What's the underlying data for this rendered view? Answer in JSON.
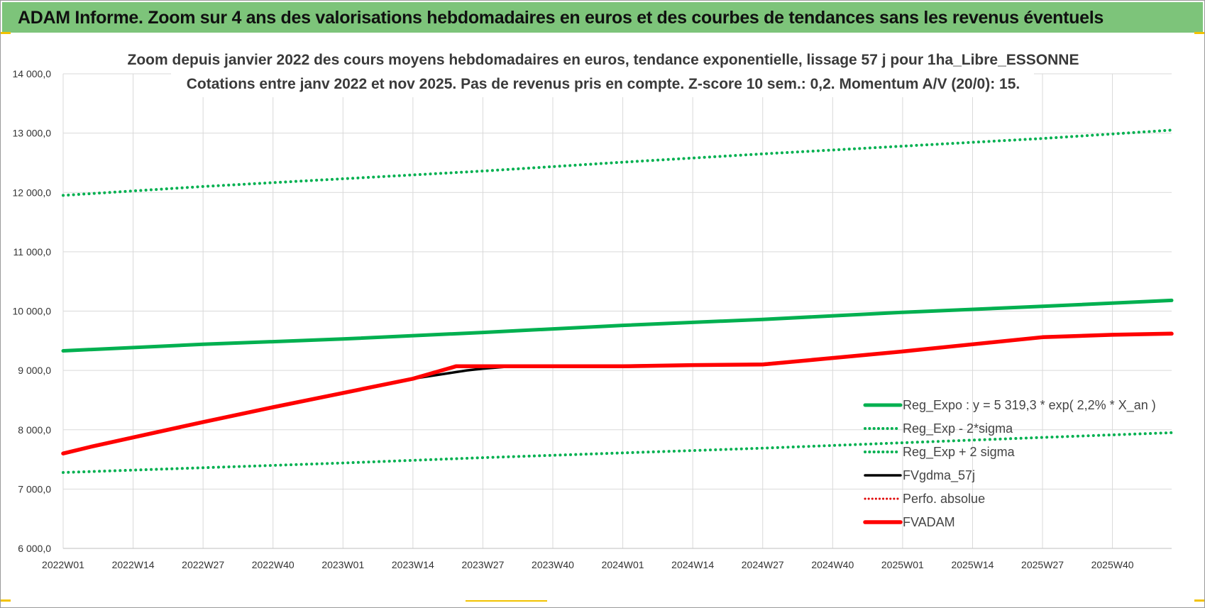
{
  "banner": {
    "title": "ADAM Informe. Zoom sur 4 ans des valorisations hebdomadaires en euros et des courbes de tendances sans les revenus éventuels"
  },
  "colors": {
    "banner": "#7dc47a",
    "trend_green": "#00b050",
    "fv_black": "#000000",
    "fvadam_red": "#ff0000",
    "perf_red": "#e00000",
    "grid": "#d9d9d9"
  },
  "chart_data": {
    "type": "line",
    "title": [
      "Zoom depuis janvier 2022 des cours moyens hebdomadaires en euros, tendance exponentielle, lissage 57 j pour 1ha_Libre_ESSONNE",
      "Cotations entre janv 2022 et nov 2025. Pas de revenus pris en compte. Z-score 10 sem.: 0,2. Momentum A/V (20/0): 15."
    ],
    "xlabel": "",
    "ylabel": "",
    "ylim": [
      6000,
      14000
    ],
    "yticks": [
      6000,
      7000,
      8000,
      9000,
      10000,
      11000,
      12000,
      13000,
      14000
    ],
    "ytick_labels": [
      "6 000,0",
      "7 000,0",
      "8 000,0",
      "9 000,0",
      "10 000,0",
      "11 000,0",
      "12 000,0",
      "13 000,0",
      "14 000,0"
    ],
    "xlim": [
      0,
      206
    ],
    "xticks": [
      0,
      13,
      26,
      39,
      52,
      65,
      78,
      91,
      104,
      117,
      130,
      143,
      156,
      169,
      182,
      195
    ],
    "xtick_labels": [
      "2022W01",
      "2022W14",
      "2022W27",
      "2022W40",
      "2023W01",
      "2023W14",
      "2023W27",
      "2023W40",
      "2024W01",
      "2024W14",
      "2024W27",
      "2024W40",
      "2025W01",
      "2025W14",
      "2025W27",
      "2025W40"
    ],
    "grid": true,
    "legend_position": "bottom-right",
    "series": [
      {
        "name": "Reg_Expo : y = 5 319,3 * exp( 2,2% *  X_an )",
        "style": "solid",
        "color": "#00b050",
        "x": [
          0,
          26,
          52,
          78,
          104,
          130,
          156,
          182,
          206
        ],
        "y": [
          9330,
          9440,
          9530,
          9640,
          9760,
          9860,
          9980,
          10080,
          10180
        ]
      },
      {
        "name": "Reg_Exp - 2*sigma",
        "style": "dotted",
        "color": "#00b050",
        "x": [
          0,
          26,
          52,
          78,
          104,
          130,
          156,
          182,
          206
        ],
        "y": [
          7280,
          7360,
          7440,
          7530,
          7610,
          7690,
          7780,
          7870,
          7950
        ]
      },
      {
        "name": "Reg_Exp + 2 sigma",
        "style": "dotted",
        "color": "#00b050",
        "x": [
          0,
          26,
          52,
          78,
          104,
          130,
          156,
          182,
          206
        ],
        "y": [
          11950,
          12100,
          12230,
          12360,
          12510,
          12650,
          12780,
          12910,
          13050
        ]
      },
      {
        "name": "FVgdma_57j",
        "style": "solid",
        "color": "#000000",
        "x": [
          0,
          5,
          13,
          26,
          39,
          52,
          65,
          75,
          78,
          85,
          91,
          104,
          117,
          130,
          143,
          156,
          169,
          182,
          195,
          206
        ],
        "y": [
          7600,
          7710,
          7870,
          8130,
          8380,
          8620,
          8860,
          9000,
          9030,
          9080,
          9080,
          9080,
          9090,
          9110,
          9210,
          9320,
          9440,
          9560,
          9600,
          9620
        ]
      },
      {
        "name": "Perfo. absolue",
        "style": "dotted",
        "color": "#e00000",
        "x": [],
        "y": []
      },
      {
        "name": "FVADAM",
        "style": "solid",
        "color": "#ff0000",
        "x": [
          0,
          5,
          13,
          26,
          39,
          52,
          65,
          73,
          78,
          91,
          104,
          117,
          130,
          143,
          156,
          169,
          182,
          195,
          206
        ],
        "y": [
          7600,
          7710,
          7870,
          8130,
          8380,
          8620,
          8860,
          9070,
          9070,
          9070,
          9070,
          9090,
          9100,
          9210,
          9320,
          9440,
          9560,
          9600,
          9620
        ]
      }
    ]
  }
}
